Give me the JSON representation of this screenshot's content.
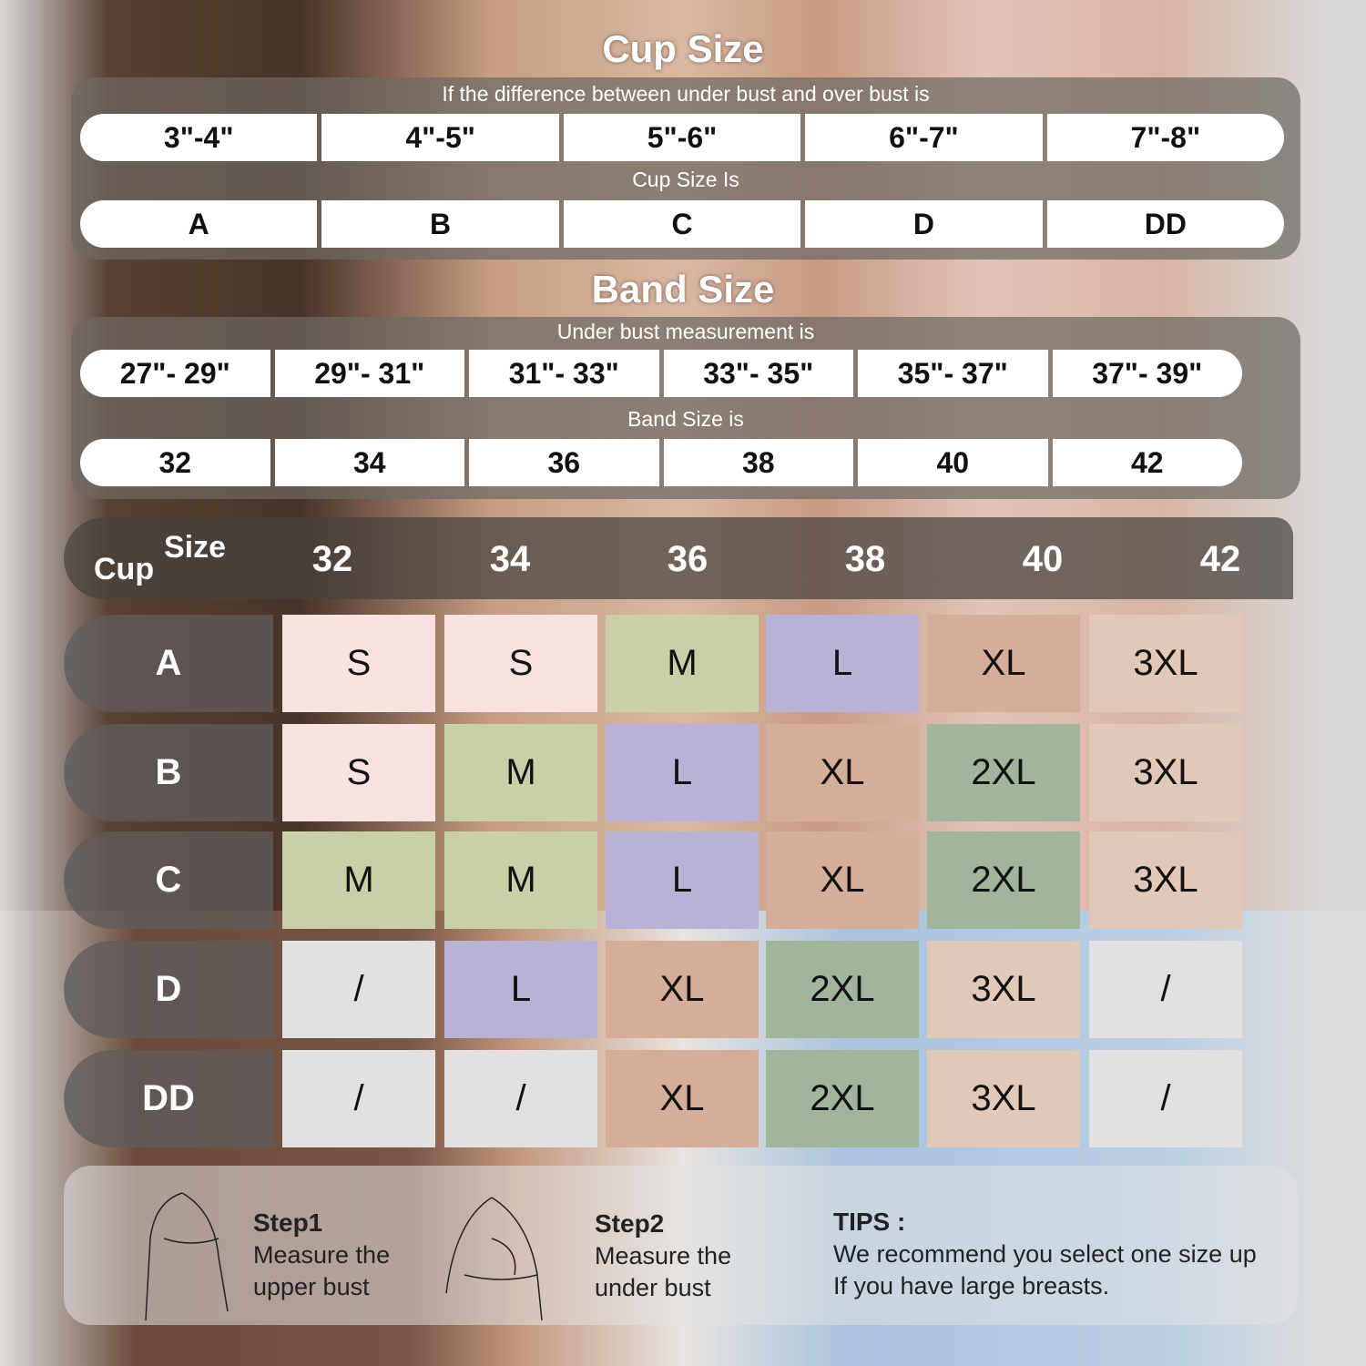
{
  "cup_section": {
    "title": "Cup Size",
    "subtitle": "If the  difference between under bust and over bust is",
    "differences": [
      "3\"-4\"",
      "4\"-5\"",
      "5\"-6\"",
      "6\"-7\"",
      "7\"-8\""
    ],
    "result_label": "Cup Size Is",
    "cups": [
      "A",
      "B",
      "C",
      "D",
      "DD"
    ]
  },
  "band_section": {
    "title": "Band Size",
    "subtitle": "Under bust measurement is",
    "measurements": [
      "27\"- 29\"",
      "29\"- 31\"",
      "31\"- 33\"",
      "33\"- 35\"",
      "35\"- 37\"",
      "37\"- 39\""
    ],
    "result_label": "Band Size is",
    "bands": [
      "32",
      "34",
      "36",
      "38",
      "40",
      "42"
    ]
  },
  "size_table": {
    "corner_cup": "Cup",
    "corner_size": "Size",
    "columns": [
      "32",
      "34",
      "36",
      "38",
      "40",
      "42"
    ],
    "rows": [
      {
        "cup": "A",
        "sizes": [
          "S",
          "S",
          "M",
          "L",
          "XL",
          "3XL"
        ]
      },
      {
        "cup": "B",
        "sizes": [
          "S",
          "M",
          "L",
          "XL",
          "2XL",
          "3XL"
        ]
      },
      {
        "cup": "C",
        "sizes": [
          "M",
          "M",
          "L",
          "XL",
          "2XL",
          "3XL"
        ]
      },
      {
        "cup": "D",
        "sizes": [
          "/",
          "L",
          "XL",
          "2XL",
          "3XL",
          "/"
        ]
      },
      {
        "cup": "DD",
        "sizes": [
          "/",
          "/",
          "XL",
          "2XL",
          "3XL",
          "/"
        ]
      }
    ]
  },
  "size_colors": {
    "S": "#f7e2e1",
    "M": "#c9cfa7",
    "L": "#b8b2d6",
    "XL": "#d5ad98",
    "2XL": "#a0b59c",
    "3XL": "#e2c8b6",
    "/": "#e3e0e2"
  },
  "instructions": {
    "step1_title": "Step1",
    "step1_line1": "Measure the",
    "step1_line2": "upper bust",
    "step2_title": "Step2",
    "step2_line1": "Measure the",
    "step2_line2": "under bust",
    "tips_title": "TIPS :",
    "tips_line1": "We recommend you select one size up",
    "tips_line2": "If you have large breasts."
  }
}
